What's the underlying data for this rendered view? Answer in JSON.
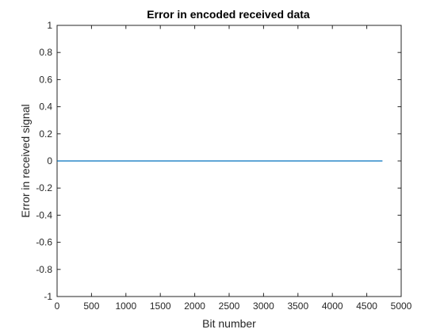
{
  "chart_data": {
    "type": "line",
    "title": "Error in encoded received data",
    "xlabel": "Bit number",
    "ylabel": "Error in received signal",
    "xlim": [
      0,
      5000
    ],
    "ylim": [
      -1,
      1
    ],
    "xticks": [
      0,
      500,
      1000,
      1500,
      2000,
      2500,
      3000,
      3500,
      4000,
      4500,
      5000
    ],
    "xtick_labels": [
      "0",
      "500",
      "1000",
      "1500",
      "2000",
      "2500",
      "3000",
      "3500",
      "4000",
      "4500",
      "5000"
    ],
    "yticks": [
      -1,
      -0.8,
      -0.6,
      -0.4,
      -0.2,
      0,
      0.2,
      0.4,
      0.6,
      0.8,
      1
    ],
    "ytick_labels": [
      "-1",
      "-0.8",
      "-0.6",
      "-0.4",
      "-0.2",
      "0",
      "0.2",
      "0.4",
      "0.6",
      "0.8",
      "1"
    ],
    "grid": false,
    "series": [
      {
        "color": "#0072BD",
        "x": [
          1,
          4728
        ],
        "y": [
          0,
          0
        ]
      }
    ]
  }
}
